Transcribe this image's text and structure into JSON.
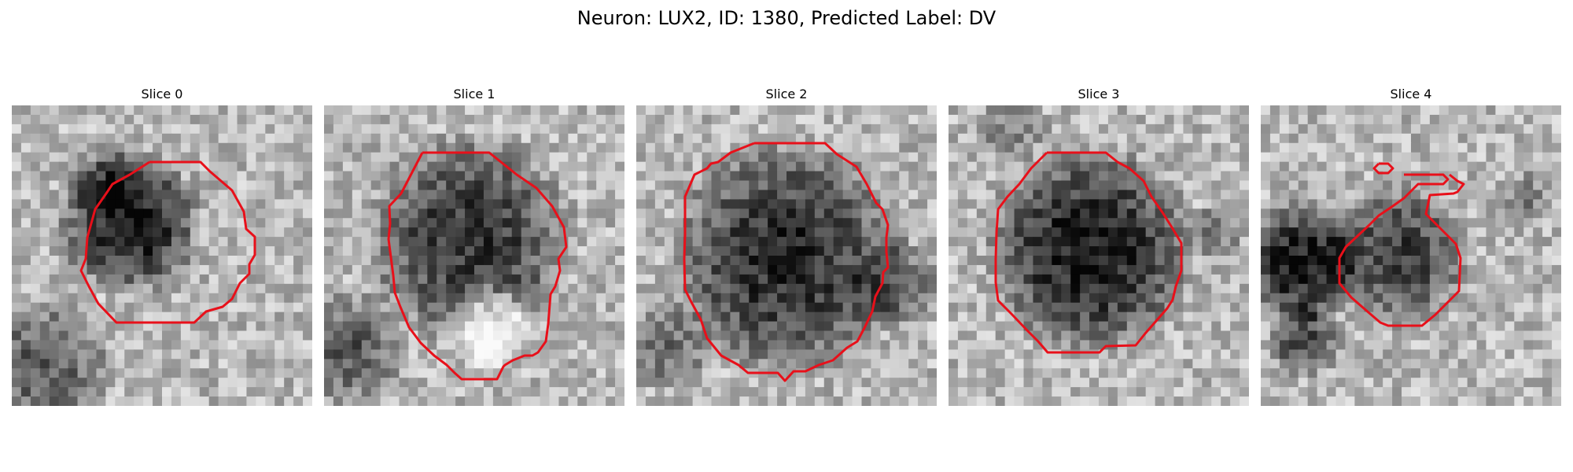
{
  "figure": {
    "title": "Neuron: LUX2, ID: 1380, Predicted Label: DV"
  },
  "slices": [
    {
      "title": "Slice 0"
    },
    {
      "title": "Slice 1"
    },
    {
      "title": "Slice 2"
    },
    {
      "title": "Slice 3"
    },
    {
      "title": "Slice 4"
    }
  ],
  "colors": {
    "contour": "#e8101a",
    "colormap": "gray"
  }
}
